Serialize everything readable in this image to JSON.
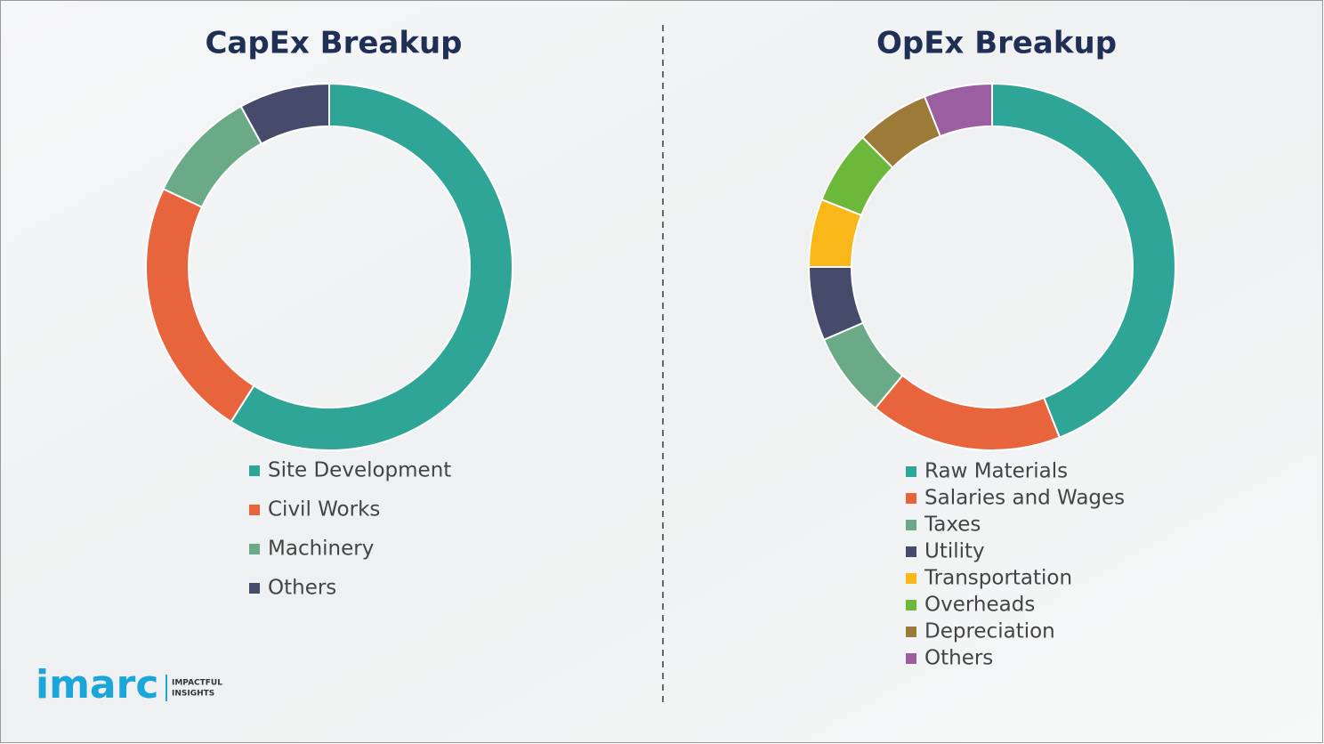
{
  "chart_data": [
    {
      "type": "pie",
      "donut": true,
      "title": "CapEx Breakup",
      "categories": [
        "Site Development",
        "Civil Works",
        "Machinery",
        "Others"
      ],
      "values": [
        59,
        23,
        10,
        8
      ],
      "colors": [
        "#2ea597",
        "#e8643c",
        "#6aaa86",
        "#474b6b"
      ]
    },
    {
      "type": "pie",
      "donut": true,
      "title": "OpEx Breakup",
      "categories": [
        "Raw Materials",
        "Salaries and Wages",
        "Taxes",
        "Utility",
        "Transportation",
        "Overheads",
        "Depreciation",
        "Others"
      ],
      "values": [
        44,
        17,
        7.5,
        6.5,
        6,
        6.5,
        6.5,
        6
      ],
      "colors": [
        "#2ea597",
        "#e8643c",
        "#6aaa86",
        "#474b6b",
        "#f9b71a",
        "#6bb83a",
        "#9c7b38",
        "#9b5ea0"
      ]
    }
  ],
  "logo": {
    "name": "imarc",
    "tagline": [
      "IMPACTFUL",
      "INSIGHTS"
    ]
  }
}
